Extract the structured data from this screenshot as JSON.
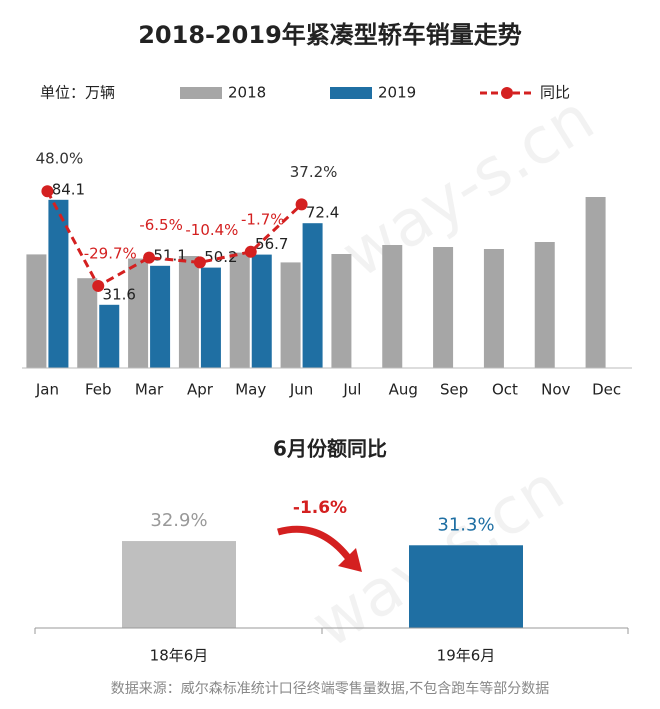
{
  "chart_data": [
    {
      "type": "bar",
      "title": "2018-2019年紧凑型轿车销量走势",
      "unit_label": "单位：万辆",
      "categories": [
        "Jan",
        "Feb",
        "Mar",
        "Apr",
        "May",
        "Jun",
        "Jul",
        "Aug",
        "Sep",
        "Oct",
        "Nov",
        "Dec"
      ],
      "series": [
        {
          "name": "2018",
          "color": "#a6a6a6",
          "values": [
            56.8,
            44.9,
            54.7,
            56.0,
            57.7,
            52.8,
            57,
            61.5,
            60.5,
            59.5,
            63,
            85.5
          ]
        },
        {
          "name": "2019",
          "color": "#1f6fa3",
          "values": [
            84.1,
            31.6,
            51.1,
            50.2,
            56.7,
            72.4,
            null,
            null,
            null,
            null,
            null,
            null
          ]
        },
        {
          "name": "同比",
          "type": "line",
          "axis": "y2",
          "color": "#d42020",
          "values": [
            48.0,
            -29.7,
            -6.5,
            -10.4,
            -1.7,
            37.2,
            null,
            null,
            null,
            null,
            null,
            null
          ],
          "value_labels": [
            "48.0%",
            "-29.7%",
            "-6.5%",
            "-10.4%",
            "-1.7%",
            "37.2%",
            null,
            null,
            null,
            null,
            null,
            null
          ]
        }
      ],
      "ylim": [
        0,
        114
      ],
      "y2lim": [
        -97,
        90
      ]
    },
    {
      "type": "bar",
      "title": "6月份额同比",
      "categories": [
        "18年6月",
        "19年6月"
      ],
      "values": [
        32.9,
        31.3
      ],
      "value_labels": [
        "32.9%",
        "31.3%"
      ],
      "colors": [
        "#bfbfbf",
        "#1f6fa3"
      ],
      "ylim": [
        0,
        56
      ],
      "annotation": "-1.6%"
    }
  ],
  "source": "数据来源：威尔森标准统计口径终端零售量数据,不包含跑车等部分数据",
  "watermark": "way-s.cn"
}
